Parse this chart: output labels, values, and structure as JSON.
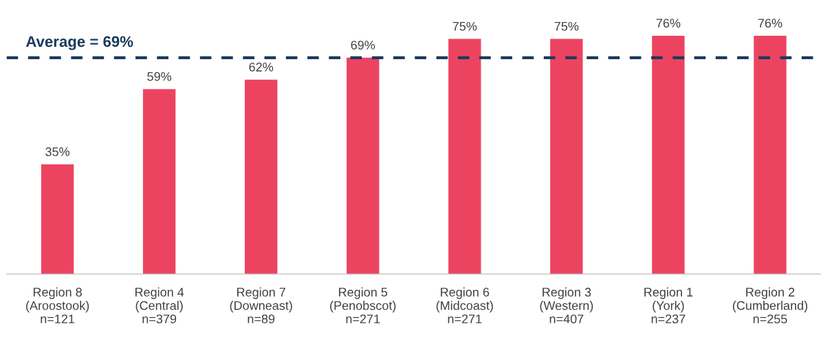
{
  "chart_data": {
    "type": "bar",
    "categories": [
      "Region 8\n(Aroostook)\nn=121",
      "Region 4\n(Central)\nn=379",
      "Region 7\n(Downeast)\nn=89",
      "Region 5\n(Penobscot)\nn=271",
      "Region 6\n(Midcoast)\nn=271",
      "Region 3\n(Western)\nn=407",
      "Region 1\n(York)\nn=237",
      "Region 2\n(Cumberland)\nn=255"
    ],
    "values": [
      35,
      59,
      62,
      69,
      75,
      75,
      76,
      76
    ],
    "value_labels": [
      "35%",
      "59%",
      "62%",
      "69%",
      "75%",
      "75%",
      "76%",
      "76%"
    ],
    "color": "#ec4460",
    "ref_lines": [
      {
        "axis": "y",
        "value": 69,
        "label": "Average = 69%",
        "color": "#1b3a5c",
        "line_style": "dashed"
      }
    ],
    "grid": false
  }
}
